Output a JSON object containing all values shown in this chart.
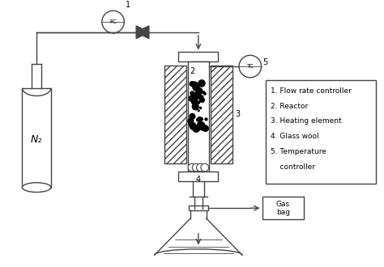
{
  "bg_color": "#ffffff",
  "line_color": "#444444",
  "n2_label": "N₂",
  "gas_bag_label": "Gas\nbag",
  "fc_label": "FC",
  "tc_label": "TC",
  "label1": "1",
  "label2": "2",
  "label3": "3",
  "label4": "4",
  "label5": "5",
  "legend_lines": [
    "1. Flow rate controller",
    "2. Reactor",
    "3. Heating element",
    "4. Glass wool",
    "5. Temperature",
    "    controller"
  ]
}
